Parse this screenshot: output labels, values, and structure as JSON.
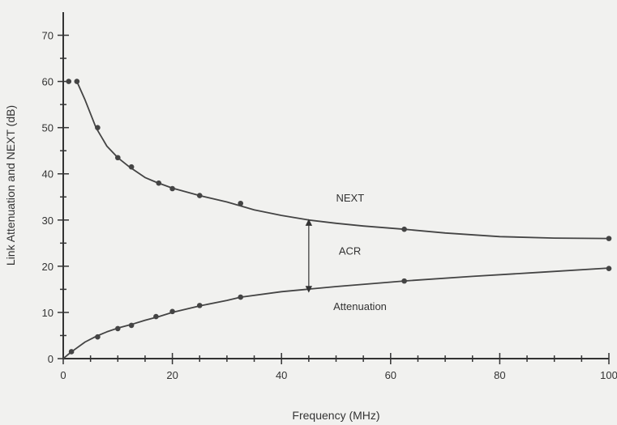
{
  "chart_data": {
    "type": "line",
    "title": "",
    "xlabel": "Frequency (MHz)",
    "ylabel": "Link Attenuation and NEXT (dB)",
    "xlim": [
      0,
      100
    ],
    "ylim": [
      0,
      75
    ],
    "x_ticks": [
      0,
      20,
      40,
      60,
      80,
      100
    ],
    "y_ticks": [
      0,
      10,
      20,
      30,
      40,
      50,
      60,
      70
    ],
    "x_tick_labels": [
      "0",
      "20",
      "40",
      "60",
      "80",
      "100"
    ],
    "y_tick_labels": [
      "0",
      "10",
      "20",
      "30",
      "40",
      "50",
      "60",
      "70"
    ],
    "grid": false,
    "legend": "none",
    "series": [
      {
        "name": "NEXT",
        "color": "#444444",
        "curve": [
          [
            2.5,
            60
          ],
          [
            4,
            56
          ],
          [
            6,
            50
          ],
          [
            8,
            46
          ],
          [
            10,
            43.5
          ],
          [
            12,
            41.6
          ],
          [
            15,
            39.2
          ],
          [
            17,
            38.2
          ],
          [
            20,
            36.9
          ],
          [
            25,
            35.3
          ],
          [
            30,
            33.9
          ],
          [
            35,
            32.2
          ],
          [
            40,
            31
          ],
          [
            45,
            30
          ],
          [
            50,
            29.3
          ],
          [
            55,
            28.7
          ],
          [
            62.5,
            28
          ],
          [
            70,
            27.2
          ],
          [
            80,
            26.4
          ],
          [
            90,
            26.1
          ],
          [
            100,
            26
          ]
        ],
        "markers": [
          [
            1,
            60
          ],
          [
            2.5,
            60
          ],
          [
            6.3,
            50
          ],
          [
            10,
            43.5
          ],
          [
            12.5,
            41.5
          ],
          [
            17.5,
            38
          ],
          [
            20,
            36.8
          ],
          [
            25,
            35.3
          ],
          [
            32.5,
            33.6
          ],
          [
            62.5,
            28
          ],
          [
            100,
            26
          ]
        ]
      },
      {
        "name": "Attenuation",
        "color": "#444444",
        "curve": [
          [
            0,
            0
          ],
          [
            1,
            1
          ],
          [
            2,
            1.9
          ],
          [
            4,
            3.6
          ],
          [
            6,
            4.8
          ],
          [
            8,
            5.8
          ],
          [
            10,
            6.6
          ],
          [
            12.5,
            7.4
          ],
          [
            15,
            8.3
          ],
          [
            17.5,
            9.1
          ],
          [
            20,
            10
          ],
          [
            25,
            11.4
          ],
          [
            30,
            12.6
          ],
          [
            32.5,
            13.3
          ],
          [
            40,
            14.5
          ],
          [
            50,
            15.6
          ],
          [
            62.5,
            16.8
          ],
          [
            75,
            17.8
          ],
          [
            87.5,
            18.7
          ],
          [
            100,
            19.6
          ]
        ],
        "markers": [
          [
            1.5,
            1.5
          ],
          [
            6.3,
            4.7
          ],
          [
            10,
            6.5
          ],
          [
            12.5,
            7.2
          ],
          [
            17,
            9.1
          ],
          [
            20,
            10.2
          ],
          [
            25,
            11.5
          ],
          [
            32.5,
            13.3
          ],
          [
            62.5,
            16.8
          ],
          [
            100,
            19.5
          ]
        ]
      }
    ],
    "annotations": [
      {
        "text": "NEXT",
        "x": 50,
        "y": 34
      },
      {
        "text": "ACR",
        "x": 50.5,
        "y": 22.5
      },
      {
        "text": "Attenuation",
        "x": 49.5,
        "y": 10.5
      }
    ],
    "acr_arrow": {
      "x": 45,
      "y_from": 29.5,
      "y_to": 15
    }
  }
}
